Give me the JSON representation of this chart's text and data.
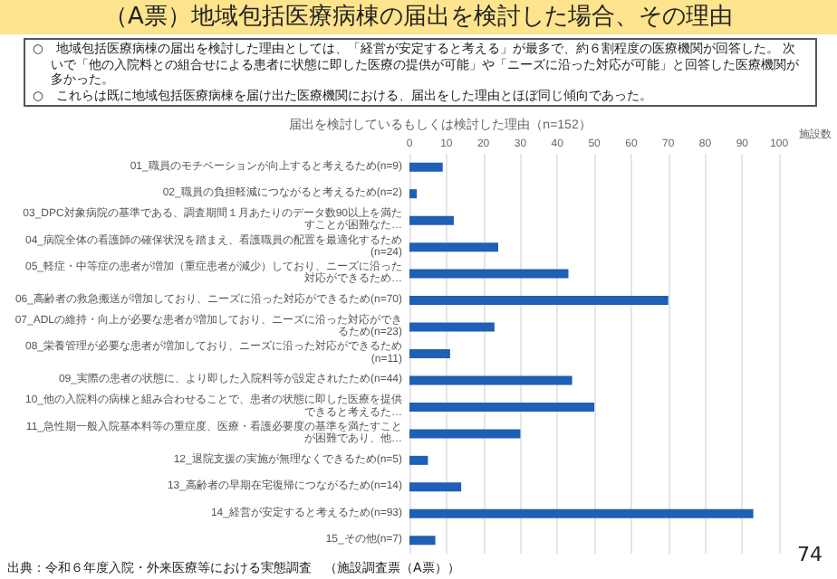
{
  "chart_data": {
    "type": "bar",
    "orientation": "horizontal",
    "title": "（A票）地域包括医療病棟の届出を検討した場合、その理由",
    "subtitle": "届出を検討しているもしくは検討した理由（n=152）",
    "xlabel": "施設数",
    "annotations": [
      "○　地域包括医療病棟の届出を検討した理由としては、「経営が安定すると考える」が最多で、約６割程度の医療機関が回答した。 次いで「他の入院料との組合せによる患者に状態に即した医療の提供が可能」や「ニーズに沿った対応が可能」と回答した医療機関が多かった。",
      "○　これらは既に地域包括医療病棟を届け出た医療機関における、届出をした理由とほぼ同じ傾向であった。",
      "出典：令和６年度入院・外来医療等における実態調査　（施設調査票（A票））",
      "74"
    ],
    "categories": [
      "01_職員のモチベーションが向上すると考えるため(n=9)",
      "02_職員の負担軽減につながると考えるため(n=2)",
      "03_DPC対象病院の基準である、調査期間１月あたりのデータ数90以上を満たすことが困難なた…",
      "04_病院全体の看護師の確保状況を踏まえ、看護職員の配置を最適化するため(n=24)",
      "05_軽症・中等症の患者が増加（重症患者が減少）しており、ニーズに沿った対応ができるため…",
      "06_高齢者の救急搬送が増加しており、ニーズに沿った対応ができるため(n=70)",
      "07_ADLの維持・向上が必要な患者が増加しており、ニーズに沿った対応ができるため(n=23)",
      "08_栄養管理が必要な患者が増加しており、ニーズに沿った対応ができるため(n=11)",
      "09_実際の患者の状態に、より即した入院料等が設定されたため(n=44)",
      "10_他の入院料の病棟と組み合わせることで、患者の状態に即した医療を提供できると考えるた…",
      "11_急性期一般入院基本料等の重症度、医療・看護必要度の基準を満たすことが困難であり、他…",
      "12_退院支援の実施が無理なくできるため(n=5)",
      "13_高齢者の早期在宅復帰につながるため(n=14)",
      "14_経営が安定すると考えるため(n=93)",
      "15_その他(n=7)"
    ],
    "values": [
      9,
      2,
      12,
      24,
      43,
      70,
      23,
      11,
      44,
      50,
      30,
      5,
      14,
      93,
      7
    ],
    "color": "#1f5fb5",
    "xlim": [
      0,
      100
    ],
    "xticks": [
      0,
      10,
      20,
      30,
      40,
      50,
      60,
      70,
      80,
      90,
      100
    ],
    "grid": "x"
  }
}
